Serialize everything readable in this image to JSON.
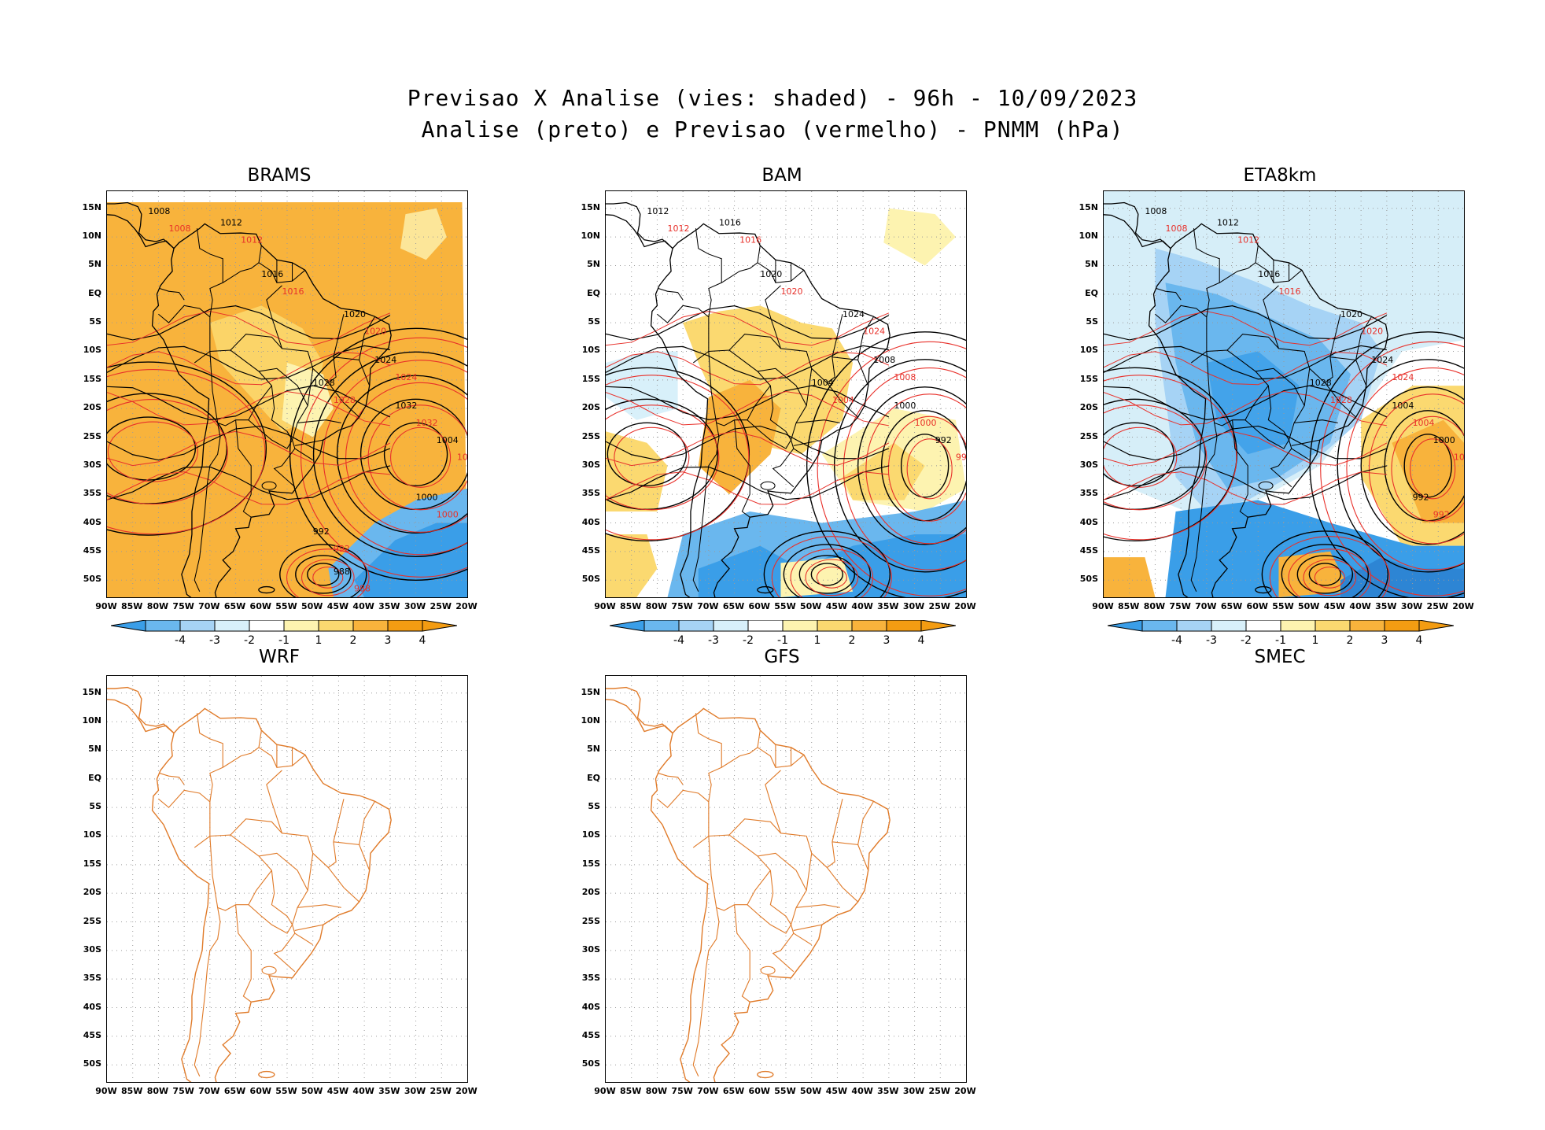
{
  "header": {
    "line1": "Previsao X Analise (vies: shaded) - 96h - 10/09/2023",
    "line2": "Analise (preto) e Previsao (vermelho) - PNMM (hPa)"
  },
  "axes": {
    "lat_labels": [
      "15N",
      "10N",
      "5N",
      "EQ",
      "5S",
      "10S",
      "15S",
      "20S",
      "25S",
      "30S",
      "35S",
      "40S",
      "45S",
      "50S"
    ],
    "lon_labels": [
      "90W",
      "85W",
      "80W",
      "75W",
      "70W",
      "65W",
      "60W",
      "55W",
      "50W",
      "45W",
      "40W",
      "35W",
      "30W",
      "25W",
      "20W"
    ]
  },
  "colorbar": {
    "labels": [
      "-4",
      "-3",
      "-2",
      "-1",
      "1",
      "2",
      "3",
      "4"
    ],
    "colors": [
      "#3a9ee8",
      "#6ab7ee",
      "#a6d3f5",
      "#d8f0fa",
      "#ffffff",
      "#fdf3b0",
      "#fbd970",
      "#f8b33c",
      "#f39c12"
    ]
  },
  "panels": [
    {
      "name": "BRAMS",
      "contour_labels": [
        "1008",
        "1012",
        "1016",
        "1020",
        "1024",
        "1028",
        "1032",
        "1004",
        "1000",
        "992",
        "988"
      ]
    },
    {
      "name": "BAM",
      "contour_labels": [
        "1012",
        "1016",
        "1020",
        "1024",
        "1008",
        "1004",
        "1000",
        "992"
      ]
    },
    {
      "name": "ETA8km",
      "contour_labels": [
        "1008",
        "1012",
        "1016",
        "1020",
        "1024",
        "1028",
        "1004",
        "1000",
        "992"
      ]
    },
    {
      "name": "WRF",
      "contour_labels": []
    },
    {
      "name": "GFS",
      "contour_labels": []
    },
    {
      "name": "SMEC",
      "contour_labels": []
    }
  ],
  "colors": {
    "analysis": "#000000",
    "forecast": "#e8302a",
    "map_outline": "#e07b2a"
  }
}
